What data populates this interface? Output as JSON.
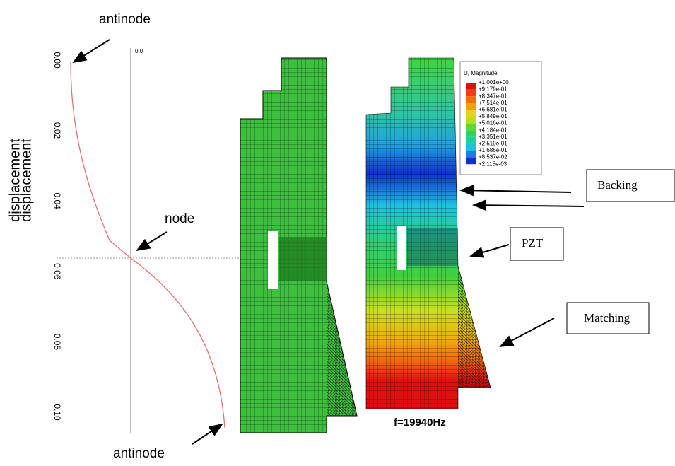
{
  "plot": {
    "y_label": "displacement",
    "y_label_2": "displacement",
    "zero_label": "0.0",
    "yticks": [
      "0.00",
      "0.02",
      "0.04",
      "0.06",
      "0.08",
      "0.10"
    ]
  },
  "annotations": {
    "antinode_top": "antinode",
    "node": "node",
    "antinode_bottom": "antinode"
  },
  "legend": {
    "title": "U, Magnitude",
    "values": [
      "+1.001e+00",
      "+9.179e-01",
      "+8.347e-01",
      "+7.514e-01",
      "+6.681e-01",
      "+5.849e-01",
      "+5.016e-01",
      "+4.184e-01",
      "+3.351e-01",
      "+2.519e-01",
      "+1.686e-01",
      "+8.537e-02",
      "+2.115e-03"
    ]
  },
  "callouts": [
    "Backing",
    "PZT",
    "Matching"
  ],
  "frequency": "f=19940Hz"
}
